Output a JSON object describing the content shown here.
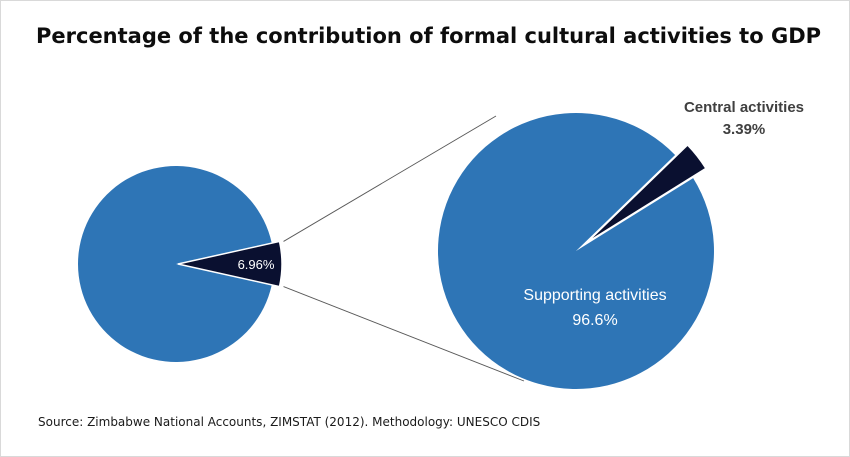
{
  "chart_data": {
    "type": "pie",
    "subtype": "pie-of-pie",
    "title": "Percentage of the contribution of formal cultural activities to GDP",
    "source": "Source: Zimbabwe National Accounts, ZIMSTAT (2012). Methodology: UNESCO CDIS",
    "main_pie": {
      "slices": [
        {
          "name": "",
          "value": 93.04,
          "color": "#2e75b6",
          "label": ""
        },
        {
          "name": "",
          "value": 6.96,
          "color": "#0a1030",
          "label": "6.96%"
        }
      ]
    },
    "secondary_pie": {
      "slices": [
        {
          "name": "Supporting activities",
          "value": 96.6,
          "color": "#2e75b6",
          "label": "96.6%"
        },
        {
          "name": "Central activities",
          "value": 3.39,
          "color": "#0a1030",
          "label": "3.39%"
        }
      ]
    },
    "label_color": "#ffffff",
    "outside_label_color": "#404040"
  }
}
